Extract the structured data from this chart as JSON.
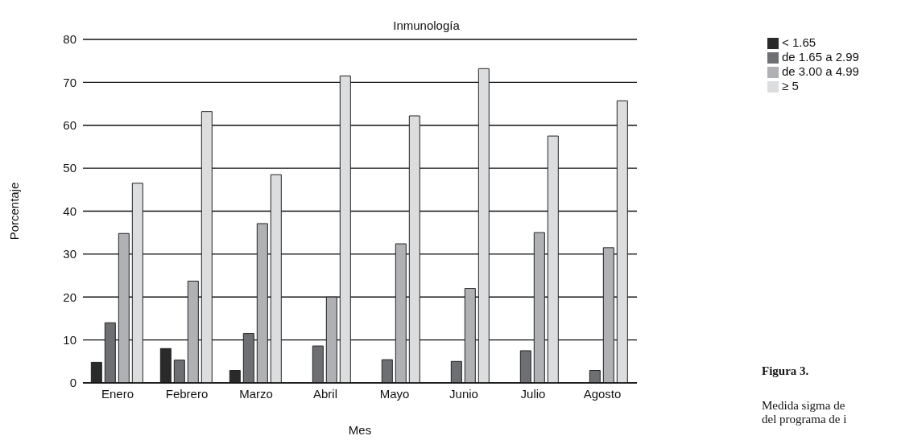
{
  "chart_data": {
    "type": "bar",
    "title": "Inmunología",
    "xlabel": "Mes",
    "ylabel": "Porcentaje",
    "categories": [
      "Enero",
      "Febrero",
      "Marzo",
      "Abril",
      "Mayo",
      "Junio",
      "Julio",
      "Agosto"
    ],
    "series": [
      {
        "name": "< 1.65",
        "color": "#2a2a2a",
        "values": [
          4.8,
          8,
          2.9,
          null,
          null,
          null,
          null,
          null
        ]
      },
      {
        "name": "de 1.65 a 2.99",
        "color": "#6e6f72",
        "values": [
          14,
          5.3,
          11.5,
          8.6,
          5.4,
          5,
          7.5,
          2.9
        ]
      },
      {
        "name": "de 3.00 a 4.99",
        "color": "#b0b1b4",
        "values": [
          34.8,
          23.7,
          37.1,
          20,
          32.4,
          22,
          35,
          31.5
        ]
      },
      {
        "name": "≥ 5",
        "color": "#dcdddf",
        "values": [
          46.5,
          63.2,
          48.5,
          71.5,
          62.2,
          73.2,
          57.5,
          65.7
        ]
      }
    ],
    "ylim": [
      0,
      80
    ],
    "yticks": [
      0,
      10,
      20,
      30,
      40,
      50,
      60,
      70,
      80
    ],
    "grid": "y",
    "legend": "top right",
    "annotations": [
      "Figura 3.",
      "Medida sigma de",
      "del programa de i"
    ]
  }
}
